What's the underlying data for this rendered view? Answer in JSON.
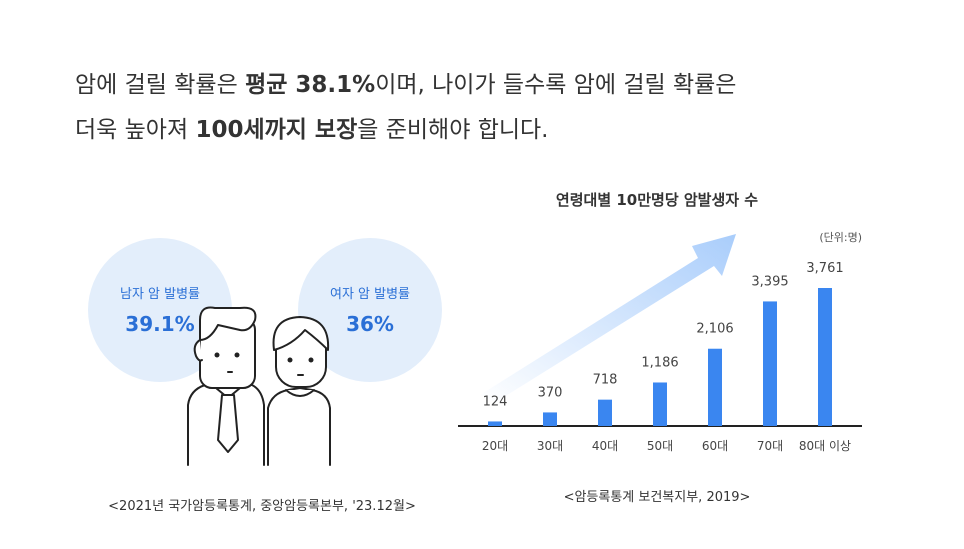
{
  "headline": {
    "line1": [
      {
        "text": "암에 걸릴 확률은 ",
        "bold": false
      },
      {
        "text": "평균 38.1%",
        "bold": true
      },
      {
        "text": "이며, 나이가 들수록 암에 걸릴 확률은",
        "bold": false
      }
    ],
    "line2": [
      {
        "text": "더욱 높아져 ",
        "bold": false
      },
      {
        "text": "100세까지 보장",
        "bold": true
      },
      {
        "text": "을 준비해야 합니다.",
        "bold": false
      }
    ]
  },
  "incidence": {
    "male": {
      "label": "남자 암 발병률",
      "rate": "39.1%"
    },
    "female": {
      "label": "여자 암 발병률",
      "rate": "36%"
    },
    "source": "<2021년 국가암등록통계, 중앙암등록본부, '23.12월>"
  },
  "chart_data": {
    "type": "bar",
    "title": "연령대별 10만명당 암발생자 수",
    "unit": "(단위:명)",
    "categories": [
      "20대",
      "30대",
      "40대",
      "50대",
      "60대",
      "70대",
      "80대 이상"
    ],
    "values": [
      124,
      370,
      718,
      1186,
      2106,
      3395,
      3761
    ],
    "value_labels": [
      "124",
      "370",
      "718",
      "1,186",
      "2,106",
      "3,395",
      "3,761"
    ],
    "color": "#3a86f0",
    "source": "<암등록통계 보건복지부, 2019>"
  }
}
